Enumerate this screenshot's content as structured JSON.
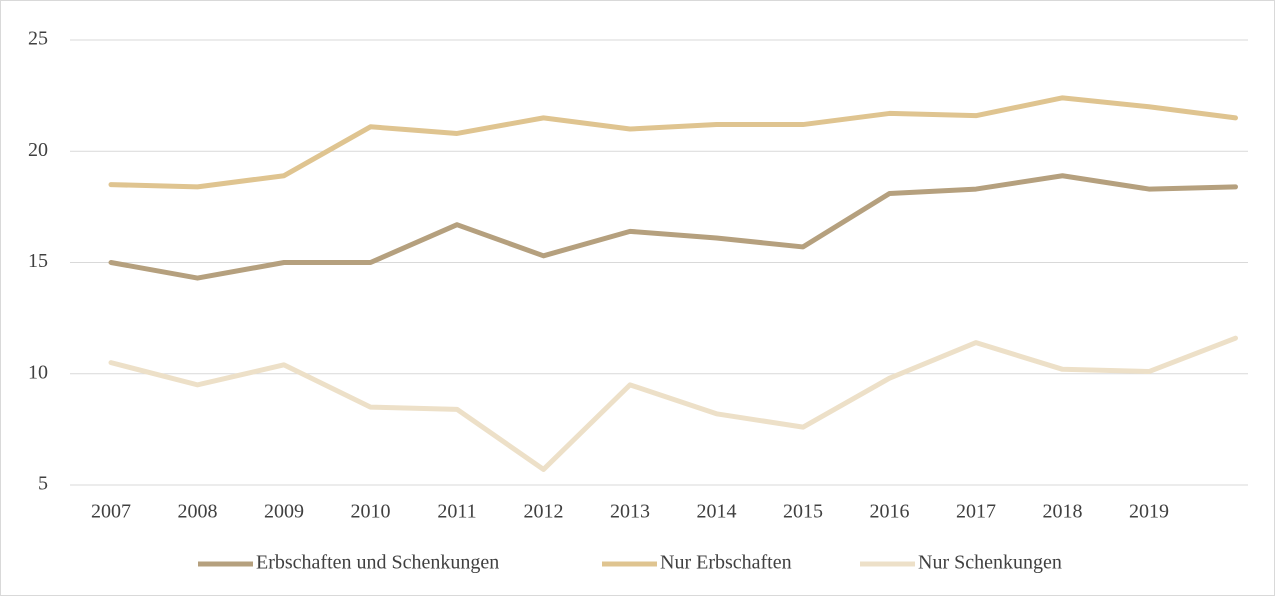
{
  "chart_data": {
    "type": "line",
    "categories": [
      "2007",
      "2008",
      "2009",
      "2010",
      "2011",
      "2012",
      "2013",
      "2014",
      "2015",
      "2016",
      "2017",
      "2018",
      "2019",
      null
    ],
    "series": [
      {
        "name": "Erbschaften und Schenkungen",
        "color": "#b5a07e",
        "values": [
          15.0,
          14.3,
          15.0,
          15.0,
          16.7,
          15.3,
          16.4,
          16.1,
          15.7,
          18.1,
          18.3,
          18.9,
          18.3,
          18.4
        ]
      },
      {
        "name": "Nur Erbschaften",
        "color": "#dfc490",
        "values": [
          18.5,
          18.4,
          18.9,
          21.1,
          20.8,
          21.5,
          21.0,
          21.2,
          21.2,
          21.7,
          21.6,
          22.4,
          22.0,
          21.5
        ]
      },
      {
        "name": "Nur Schenkungen",
        "color": "#ede0c8",
        "values": [
          10.5,
          9.5,
          10.4,
          8.5,
          8.4,
          5.7,
          9.5,
          8.2,
          7.6,
          9.8,
          11.4,
          10.2,
          10.1,
          11.6
        ]
      }
    ],
    "ylim": [
      5,
      25
    ],
    "yticks": [
      5,
      10,
      15,
      20,
      25
    ],
    "grid": true,
    "legend": "bottom"
  }
}
